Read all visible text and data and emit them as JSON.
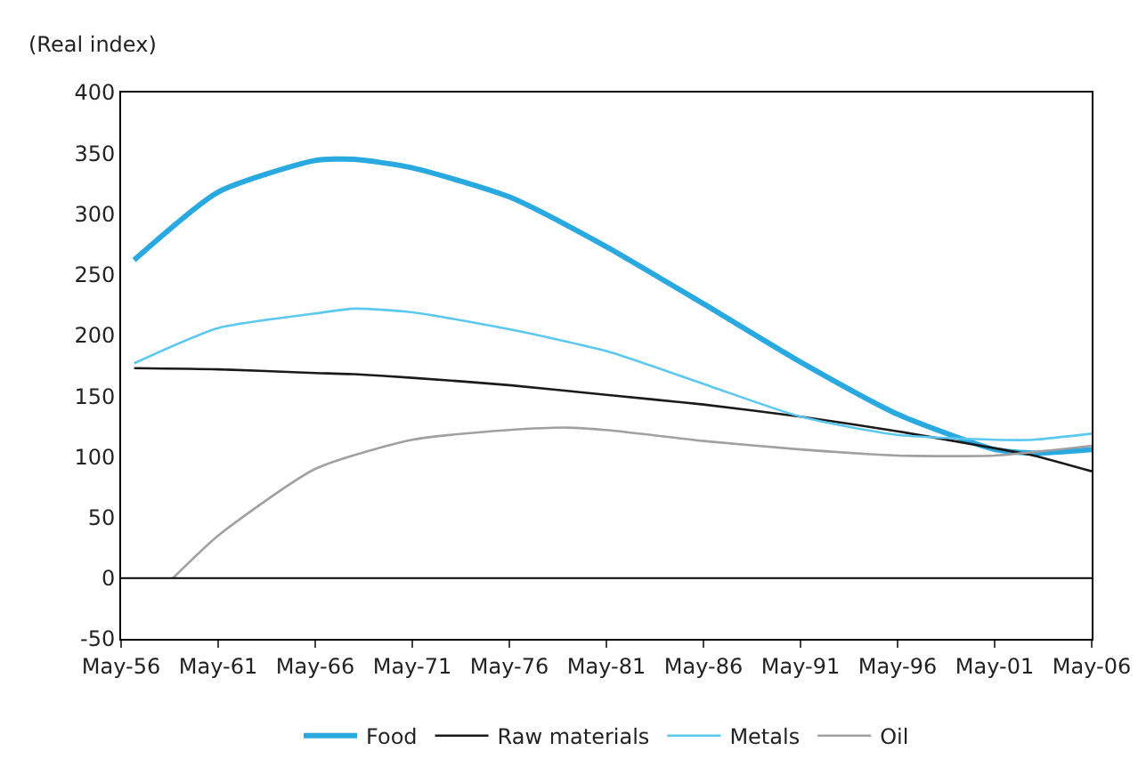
{
  "chart_data": {
    "type": "line",
    "ylabel": "(Real index)",
    "xlim": [
      "1956-05",
      "2006-05"
    ],
    "xticks": [
      {
        "value": "1956-05",
        "label": "May-56"
      },
      {
        "value": "1961-05",
        "label": "May-61"
      },
      {
        "value": "1966-05",
        "label": "May-66"
      },
      {
        "value": "1971-05",
        "label": "May-71"
      },
      {
        "value": "1976-05",
        "label": "May-76"
      },
      {
        "value": "1981-05",
        "label": "May-81"
      },
      {
        "value": "1986-05",
        "label": "May-86"
      },
      {
        "value": "1991-05",
        "label": "May-91"
      },
      {
        "value": "1996-05",
        "label": "May-96"
      },
      {
        "value": "2001-05",
        "label": "May-01"
      },
      {
        "value": "2006-05",
        "label": "May-06"
      }
    ],
    "ylim": [
      -50,
      400
    ],
    "yticks": [
      -50,
      0,
      50,
      100,
      150,
      200,
      250,
      300,
      350,
      400
    ],
    "x": [
      "1957-01",
      "1961-05",
      "1966-05",
      "1968-05",
      "1971-05",
      "1976-05",
      "1981-05",
      "1986-05",
      "1991-05",
      "1996-05",
      "2001-05",
      "2003-05",
      "2006-05"
    ],
    "series": [
      {
        "name": "Food",
        "color": "#29a9e0",
        "values": [
          262,
          318,
          344,
          345,
          338,
          314,
          273,
          226,
          178,
          135,
          106,
          103,
          106
        ]
      },
      {
        "name": "Raw materials",
        "color": "#1a1a1a",
        "values": [
          173,
          172,
          169,
          168,
          165,
          159,
          151,
          143,
          133,
          121,
          107,
          101,
          88
        ]
      },
      {
        "name": "Metals",
        "color": "#5bc8f0",
        "values": [
          177,
          206,
          218,
          222,
          219,
          205,
          187,
          160,
          133,
          118,
          114,
          114,
          119
        ]
      },
      {
        "name": "Oil",
        "color": "#a0a0a0",
        "x": [
          "1959-01",
          "1961-05",
          "1966-05",
          "1971-05",
          "1976-05",
          "1979-05",
          "1981-05",
          "1986-05",
          "1991-05",
          "1996-05",
          "2001-05",
          "2006-05"
        ],
        "values": [
          0,
          35,
          90,
          114,
          122,
          124,
          122,
          113,
          106,
          101,
          101,
          109
        ]
      }
    ],
    "ref_lines": [
      {
        "axis": "y",
        "value": 0
      }
    ],
    "grid": false,
    "legend": "bottom",
    "marker": "none",
    "line_style": "solid"
  }
}
